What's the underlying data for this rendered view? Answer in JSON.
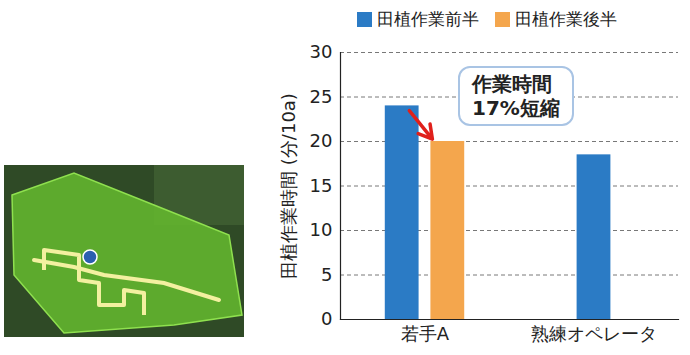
{
  "chart_data": {
    "type": "bar",
    "categories": [
      "若手A",
      "熟練オペレータ"
    ],
    "series": [
      {
        "name": "田植作業前半",
        "color": "#2b7bc5",
        "values": [
          24,
          18.5
        ]
      },
      {
        "name": "田植作業後半",
        "color": "#f4a64d",
        "values": [
          20,
          null
        ]
      }
    ],
    "y_label": "田植作業時間 (分/10a)",
    "ylim": [
      0,
      30
    ],
    "yticks": [
      0,
      5,
      10,
      15,
      20,
      25,
      30
    ],
    "grid": true,
    "legend": "top",
    "annotation": "作業時間\n17%短縮"
  }
}
